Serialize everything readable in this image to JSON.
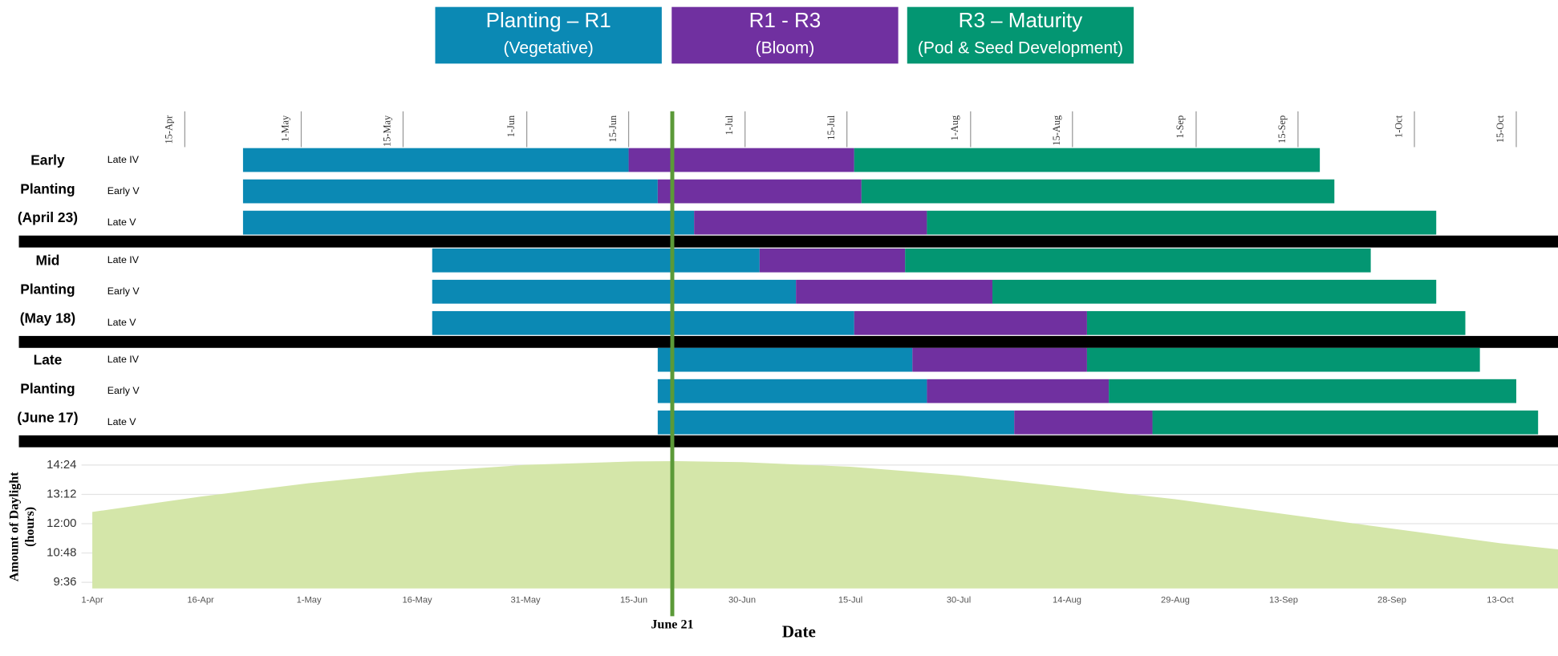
{
  "chart_data": [
    {
      "type": "gantt",
      "series": [
        {
          "name": "Planting – R1",
          "description": "(Vegetative)",
          "color": "#0b89b4"
        },
        {
          "name": "R1  - R3",
          "description": "(Bloom)",
          "color": "#7030a0"
        },
        {
          "name": "R3 – Maturity",
          "description": "(Pod & Seed Development)",
          "color": "#039672"
        }
      ],
      "xlim": [
        105,
        288
      ],
      "xticks": [
        {
          "value": 105,
          "label": "15-Apr"
        },
        {
          "value": 121,
          "label": "1-May"
        },
        {
          "value": 135,
          "label": "15-May"
        },
        {
          "value": 152,
          "label": "1-Jun"
        },
        {
          "value": 166,
          "label": "15-Jun"
        },
        {
          "value": 182,
          "label": "1-Jul"
        },
        {
          "value": 196,
          "label": "15-Jul"
        },
        {
          "value": 213,
          "label": "1-Aug"
        },
        {
          "value": 227,
          "label": "15-Aug"
        },
        {
          "value": 244,
          "label": "1-Sep"
        },
        {
          "value": 258,
          "label": "15-Sep"
        },
        {
          "value": 274,
          "label": "1-Oct"
        },
        {
          "value": 288,
          "label": "15-Oct"
        }
      ],
      "groups": [
        {
          "label": [
            "Early",
            "Planting",
            "(April 23)"
          ],
          "rows": [
            {
              "name": "Late IV",
              "values": [
                113,
                166,
                197,
                261
              ]
            },
            {
              "name": "Early V",
              "values": [
                113,
                170,
                198,
                263
              ]
            },
            {
              "name": "Late V",
              "values": [
                113,
                175,
                207,
                277
              ]
            }
          ]
        },
        {
          "label": [
            "Mid",
            "Planting",
            "(May 18)"
          ],
          "rows": [
            {
              "name": "Late IV",
              "values": [
                139,
                184,
                204,
                268
              ]
            },
            {
              "name": "Early V",
              "values": [
                139,
                189,
                216,
                277
              ]
            },
            {
              "name": "Late V",
              "values": [
                139,
                197,
                229,
                281
              ]
            }
          ]
        },
        {
          "label": [
            "Late",
            "Planting",
            "(June 17)"
          ],
          "rows": [
            {
              "name": "Late IV",
              "values": [
                170,
                205,
                229,
                283
              ]
            },
            {
              "name": "Early V",
              "values": [
                170,
                207,
                232,
                288
              ]
            },
            {
              "name": "Late V",
              "values": [
                170,
                219,
                238,
                291
              ]
            }
          ]
        }
      ],
      "annotation": {
        "label": "June 21",
        "value": 172,
        "color": "#5b9a38"
      }
    },
    {
      "type": "area",
      "xlabel": "Date",
      "ylabel": [
        "Amount of Daylight",
        "(hours)"
      ],
      "color": "#d4e6a9",
      "grid": true,
      "x": [
        91,
        106,
        121,
        136,
        151,
        166,
        172,
        181,
        196,
        211,
        226,
        241,
        256,
        271,
        286,
        294
      ],
      "values": [
        12.48,
        13.11,
        13.66,
        14.1,
        14.41,
        14.55,
        14.56,
        14.52,
        14.33,
        13.98,
        13.5,
        13.0,
        12.4,
        11.8,
        11.2,
        10.95
      ],
      "xlim": [
        89.5,
        294
      ],
      "ylim": [
        9.35,
        14.75
      ],
      "xticks": [
        {
          "value": 91,
          "label": "1-Apr"
        },
        {
          "value": 106,
          "label": "16-Apr"
        },
        {
          "value": 121,
          "label": "1-May"
        },
        {
          "value": 136,
          "label": "16-May"
        },
        {
          "value": 151,
          "label": "31-May"
        },
        {
          "value": 166,
          "label": "15-Jun"
        },
        {
          "value": 181,
          "label": "30-Jun"
        },
        {
          "value": 196,
          "label": "15-Jul"
        },
        {
          "value": 211,
          "label": "30-Jul"
        },
        {
          "value": 226,
          "label": "14-Aug"
        },
        {
          "value": 241,
          "label": "29-Aug"
        },
        {
          "value": 256,
          "label": "13-Sep"
        },
        {
          "value": 271,
          "label": "28-Sep"
        },
        {
          "value": 286,
          "label": "13-Oct"
        }
      ],
      "yticks": [
        {
          "value": 9.6,
          "label": "9:36"
        },
        {
          "value": 10.8,
          "label": "10:48"
        },
        {
          "value": 12,
          "label": "12:00"
        },
        {
          "value": 13.2,
          "label": "13:12"
        },
        {
          "value": 14.4,
          "label": "14:24"
        }
      ]
    }
  ]
}
